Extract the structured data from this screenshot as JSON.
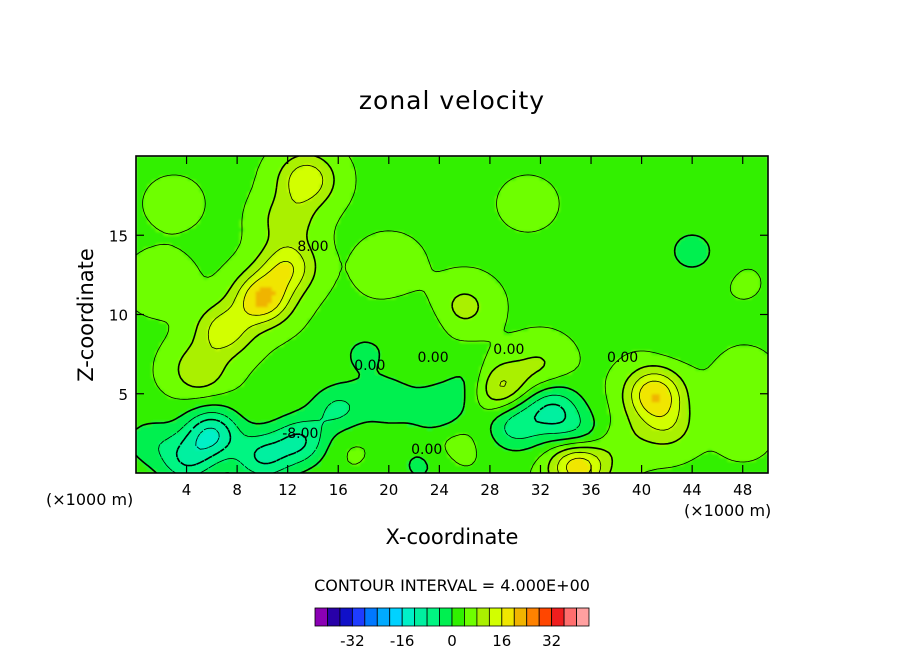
{
  "chart_data": {
    "type": "heatmap",
    "title": "zonal velocity",
    "xlabel": "X-coordinate",
    "ylabel": "Z-coordinate",
    "x_units": "(×1000 m)",
    "xlim": [
      0,
      50
    ],
    "ylim": [
      0,
      20
    ],
    "x_ticks": [
      "4",
      "8",
      "12",
      "16",
      "20",
      "24",
      "28",
      "32",
      "36",
      "40",
      "44",
      "48"
    ],
    "x_tick_values": [
      4,
      8,
      12,
      16,
      20,
      24,
      28,
      32,
      36,
      40,
      44,
      48
    ],
    "y_ticks": [
      "5",
      "10",
      "15"
    ],
    "y_tick_values": [
      5,
      10,
      15
    ],
    "contour_interval_text": "CONTOUR INTERVAL = 4.000E+00",
    "contour_labels": [
      {
        "text": "8.00",
        "x": 14,
        "z": 14
      },
      {
        "text": "0.00",
        "x": 18.5,
        "z": 6.5
      },
      {
        "text": "0.00",
        "x": 23.5,
        "z": 7
      },
      {
        "text": "0.00",
        "x": 29.5,
        "z": 7.5
      },
      {
        "text": "0.00",
        "x": 38.5,
        "z": 7
      },
      {
        "text": "0.00",
        "x": 23,
        "z": 1.2
      },
      {
        "text": "-8.00",
        "x": 13,
        "z": 2.2
      }
    ],
    "colorbar": {
      "levels": [
        -40,
        -36,
        -32,
        -28,
        -24,
        -20,
        -16,
        -12,
        -8,
        -4,
        0,
        4,
        8,
        12,
        16,
        20,
        24,
        28,
        32,
        36,
        40
      ],
      "tick_labels": [
        "-32",
        "-16",
        "0",
        "16",
        "32"
      ],
      "tick_values": [
        -32,
        -16,
        0,
        16,
        32
      ],
      "colors": [
        "#8a00b4",
        "#2800a8",
        "#1010c8",
        "#1e3cff",
        "#0078ff",
        "#00aaff",
        "#00d2ff",
        "#00f0c8",
        "#00f0a0",
        "#00f582",
        "#00f050",
        "#30f000",
        "#6eff00",
        "#aaf000",
        "#d2ff00",
        "#f0e600",
        "#f0b400",
        "#ff8200",
        "#ff4600",
        "#f01e1e",
        "#ff6e6e",
        "#ffa0a0"
      ]
    },
    "features": [
      {
        "x": 6,
        "z": 2.5,
        "value": -14
      },
      {
        "x": 10,
        "z": 1,
        "value": -10
      },
      {
        "x": 13,
        "z": 2,
        "value": -10
      },
      {
        "x": 4,
        "z": 0.8,
        "value": -9
      },
      {
        "x": 16,
        "z": 4,
        "value": -7
      },
      {
        "x": 16.5,
        "z": 2,
        "value": 3
      },
      {
        "x": 20,
        "z": 4.5,
        "value": -5
      },
      {
        "x": 24,
        "z": 4,
        "value": -6
      },
      {
        "x": 25,
        "z": 2,
        "value": 4
      },
      {
        "x": 27,
        "z": 5.8,
        "value": -6
      },
      {
        "x": 28.5,
        "z": 5.5,
        "value": 14
      },
      {
        "x": 30,
        "z": 3,
        "value": -8
      },
      {
        "x": 33,
        "z": 4,
        "value": -10
      },
      {
        "x": 32,
        "z": 6.8,
        "value": 6
      },
      {
        "x": 35,
        "z": 0.6,
        "value": 19
      },
      {
        "x": 35,
        "z": 2.2,
        "value": -7
      },
      {
        "x": 22.5,
        "z": 0.5,
        "value": -3
      },
      {
        "x": 41,
        "z": 5,
        "value": 17
      },
      {
        "x": 42,
        "z": 3,
        "value": 8
      },
      {
        "x": 44,
        "z": 14,
        "value": -4
      },
      {
        "x": 43,
        "z": 9,
        "value": -2
      },
      {
        "x": 10,
        "z": 11,
        "value": 18
      },
      {
        "x": 12,
        "z": 13,
        "value": 13
      },
      {
        "x": 7,
        "z": 9,
        "value": 12
      },
      {
        "x": 5,
        "z": 6.5,
        "value": 9
      },
      {
        "x": 13.5,
        "z": 18.5,
        "value": 13
      },
      {
        "x": 12,
        "z": 16,
        "value": 8
      },
      {
        "x": 2,
        "z": 12,
        "value": 5
      },
      {
        "x": 26,
        "z": 10.5,
        "value": 7
      },
      {
        "x": 20,
        "z": 13,
        "value": 5
      },
      {
        "x": 31,
        "z": 17,
        "value": 3
      },
      {
        "x": 48,
        "z": 6,
        "value": 4
      },
      {
        "x": 48,
        "z": 2.5,
        "value": 3
      },
      {
        "x": 38.5,
        "z": 2,
        "value": 4
      },
      {
        "x": 1,
        "z": 2,
        "value": -4
      },
      {
        "x": 3,
        "z": 17,
        "value": 3
      },
      {
        "x": 48,
        "z": 12,
        "value": 2
      },
      {
        "x": 18,
        "z": 7.5,
        "value": -3
      },
      {
        "x": 22,
        "z": 9,
        "value": -2
      }
    ],
    "background_value": 3.5
  }
}
